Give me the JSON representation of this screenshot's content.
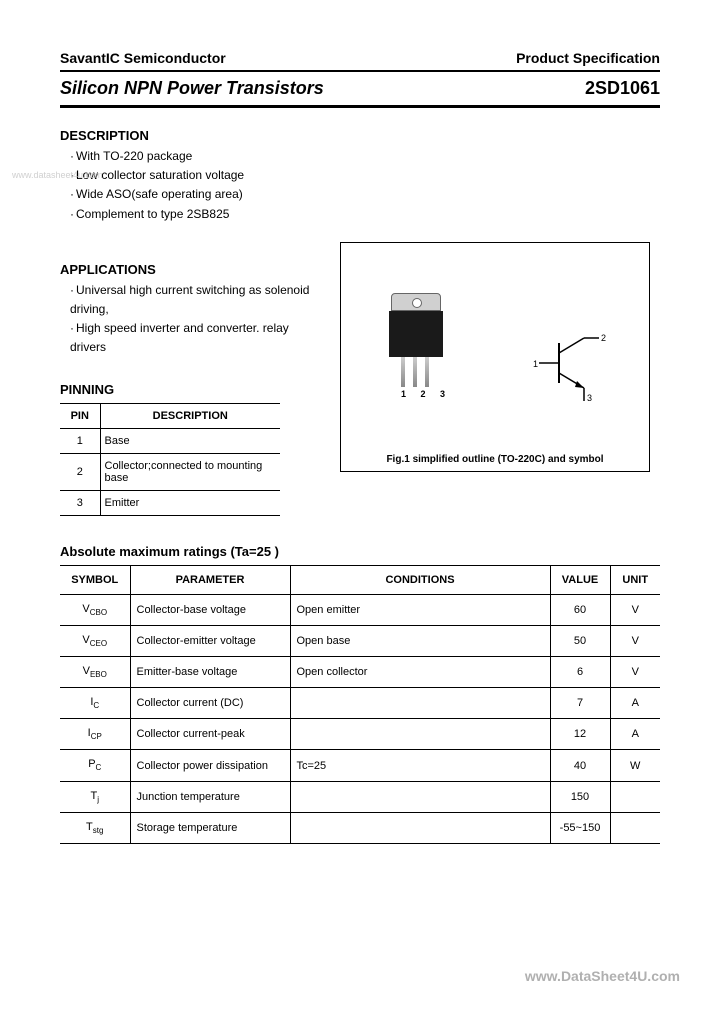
{
  "header": {
    "company": "SavantIC Semiconductor",
    "doctype": "Product Specification"
  },
  "title": {
    "left": "Silicon NPN Power Transistors",
    "right": "2SD1061"
  },
  "watermark_left": "www.datasheet4u.com",
  "description": {
    "heading": "DESCRIPTION",
    "items": [
      "With TO-220 package",
      "Low collector saturation voltage",
      "Wide ASO(safe operating area)",
      "Complement to type 2SB825"
    ]
  },
  "applications": {
    "heading": "APPLICATIONS",
    "items": [
      "Universal high current switching as solenoid driving,",
      "High speed inverter and converter. relay drivers"
    ]
  },
  "pinning": {
    "heading": "PINNING",
    "col1": "PIN",
    "col2": "DESCRIPTION",
    "rows": [
      {
        "pin": "1",
        "desc": "Base"
      },
      {
        "pin": "2",
        "desc": "Collector;connected to mounting base"
      },
      {
        "pin": "3",
        "desc": "Emitter"
      }
    ]
  },
  "figure": {
    "lead_nums": "1 2 3",
    "symbol_pins": {
      "b": "1",
      "c": "2",
      "e": "3"
    },
    "caption": "Fig.1 simplified outline (TO-220C) and symbol"
  },
  "ratings": {
    "heading": "Absolute maximum ratings (Ta=25 )",
    "columns": [
      "SYMBOL",
      "PARAMETER",
      "CONDITIONS",
      "VALUE",
      "UNIT"
    ],
    "rows": [
      {
        "sym": "V",
        "sub": "CBO",
        "param": "Collector-base voltage",
        "cond": "Open emitter",
        "val": "60",
        "unit": "V"
      },
      {
        "sym": "V",
        "sub": "CEO",
        "param": "Collector-emitter voltage",
        "cond": "Open base",
        "val": "50",
        "unit": "V"
      },
      {
        "sym": "V",
        "sub": "EBO",
        "param": "Emitter-base voltage",
        "cond": "Open collector",
        "val": "6",
        "unit": "V"
      },
      {
        "sym": "I",
        "sub": "C",
        "param": "Collector current (DC)",
        "cond": "",
        "val": "7",
        "unit": "A"
      },
      {
        "sym": "I",
        "sub": "CP",
        "param": "Collector current-peak",
        "cond": "",
        "val": "12",
        "unit": "A"
      },
      {
        "sym": "P",
        "sub": "C",
        "param": "Collector power dissipation",
        "cond": "Tc=25",
        "val": "40",
        "unit": "W"
      },
      {
        "sym": "T",
        "sub": "j",
        "param": "Junction temperature",
        "cond": "",
        "val": "150",
        "unit": ""
      },
      {
        "sym": "T",
        "sub": "stg",
        "param": "Storage temperature",
        "cond": "",
        "val": "-55~150",
        "unit": ""
      }
    ]
  },
  "footer_url": "www.DataSheet4U.com",
  "colors": {
    "text": "#000000",
    "bg": "#ffffff",
    "watermark": "#c8c8c8",
    "footer": "#b0b0b0",
    "package_body": "#1a1a1a",
    "package_tab": "#d0d0d0"
  }
}
